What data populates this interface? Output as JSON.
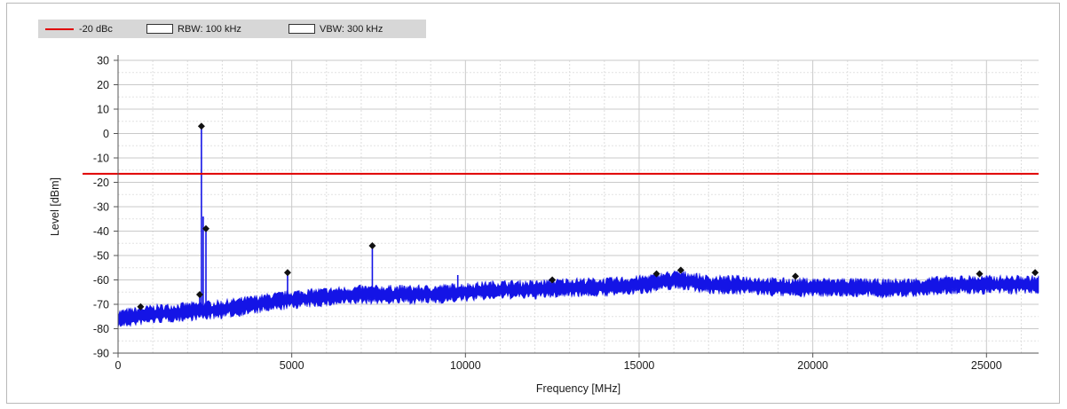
{
  "legend": {
    "items": [
      {
        "label": "-20 dBc",
        "swatch": "line",
        "color": "#e00000"
      },
      {
        "label": "RBW: 100 kHz",
        "swatch": "box",
        "color": "#ffffff"
      },
      {
        "label": "VBW: 300 kHz",
        "swatch": "box",
        "color": "#ffffff"
      }
    ]
  },
  "chart_data": {
    "type": "line",
    "xlabel": "Frequency [MHz]",
    "ylabel": "Level [dBm]",
    "xlim": [
      0,
      26500
    ],
    "ylim": [
      -90,
      30
    ],
    "xticks": [
      0,
      5000,
      10000,
      15000,
      20000,
      25000
    ],
    "yticks": [
      30,
      20,
      10,
      0,
      -10,
      -20,
      -30,
      -40,
      -50,
      -60,
      -70,
      -80,
      -90
    ],
    "grid": true,
    "legend_position": "top-left",
    "limit_line": {
      "name": "-20 dBc",
      "y": -16.5,
      "color": "#e00000"
    },
    "series": [
      {
        "color": "#1414e6",
        "noise_floor": {
          "x": [
            0,
            500,
            1000,
            2000,
            3000,
            4000,
            5000,
            6000,
            7000,
            8000,
            9000,
            10000,
            11000,
            12000,
            13000,
            14000,
            15000,
            15500,
            16000,
            16500,
            17000,
            18000,
            19000,
            20000,
            21000,
            22000,
            23000,
            24000,
            25000,
            26500
          ],
          "y": [
            -76,
            -75,
            -74,
            -73,
            -72,
            -70,
            -68,
            -67,
            -66,
            -66,
            -66,
            -65,
            -64,
            -64,
            -63,
            -63,
            -62,
            -61,
            -60,
            -60.5,
            -62,
            -62,
            -63,
            -63,
            -63,
            -63.5,
            -63,
            -62,
            -62,
            -62
          ]
        },
        "peaks": [
          {
            "x": 2400,
            "y": 3
          },
          {
            "x": 2450,
            "y": -34
          },
          {
            "x": 2530,
            "y": -39
          },
          {
            "x": 2350,
            "y": -66
          },
          {
            "x": 4880,
            "y": -57
          },
          {
            "x": 7320,
            "y": -46
          },
          {
            "x": 9780,
            "y": -58
          }
        ],
        "markers": [
          {
            "x": 650,
            "y": -71
          },
          {
            "x": 2350,
            "y": -66
          },
          {
            "x": 2400,
            "y": 3
          },
          {
            "x": 2530,
            "y": -39
          },
          {
            "x": 4880,
            "y": -57
          },
          {
            "x": 7320,
            "y": -46
          },
          {
            "x": 12500,
            "y": -60
          },
          {
            "x": 15500,
            "y": -57.5
          },
          {
            "x": 16200,
            "y": -56
          },
          {
            "x": 19500,
            "y": -58.5
          },
          {
            "x": 24800,
            "y": -57.5
          },
          {
            "x": 26400,
            "y": -57
          }
        ]
      }
    ]
  }
}
